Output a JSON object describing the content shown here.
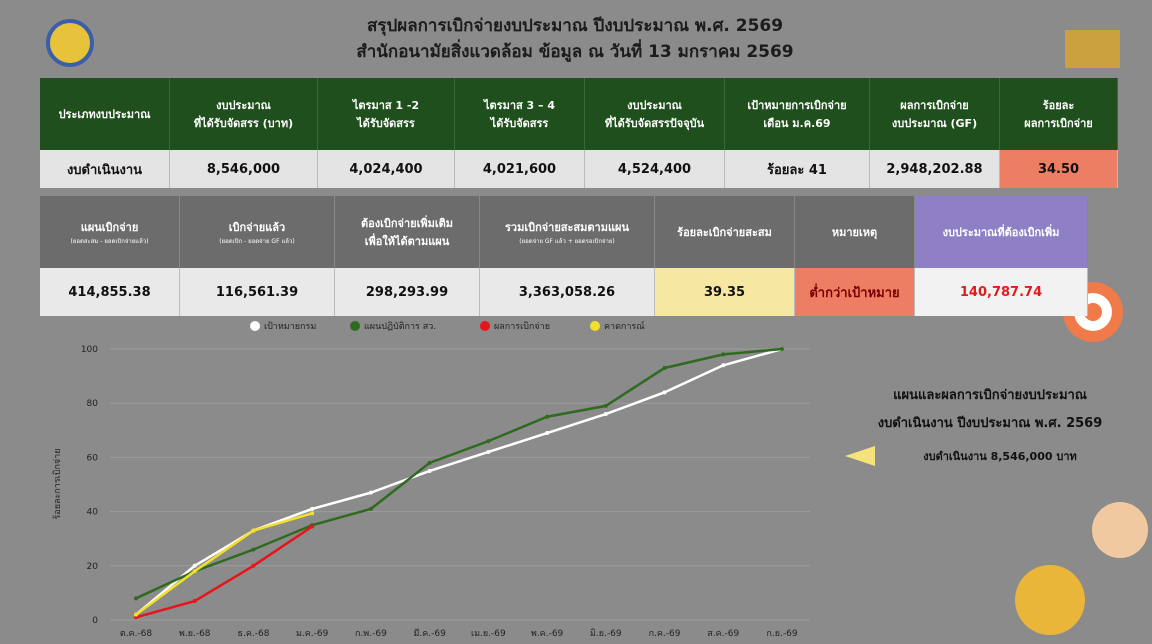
{
  "header": {
    "title": "สรุปผลการเบิกจ่ายงบประมาณ ปีงบประมาณ พ.ศ. 2569",
    "subtitle": "สำนักอนามัยสิ่งแวดล้อม ข้อมูล ณ วันที่ 13 มกราคม 2569"
  },
  "table1": {
    "headers": [
      "ประเภทงบประมาณ",
      "งบประมาณ\nที่ได้รับจัดสรร (บาท)",
      "ไตรมาส 1 -2\nได้รับจัดสรร",
      "ไตรมาส 3 – 4\nได้รับจัดสรร",
      "งบประมาณ\nที่ได้รับจัดสรรปัจจุบัน",
      "เป้าหมายการเบิกจ่าย\nเดือน ม.ค.69",
      "ผลการเบิกจ่าย\nงบประมาณ (GF)",
      "ร้อยละ\nผลการเบิกจ่าย"
    ],
    "row": [
      "งบดำเนินงาน",
      "8,546,000",
      "4,024,400",
      "4,021,600",
      "4,524,400",
      "ร้อยละ 41",
      "2,948,202.88",
      "34.50"
    ]
  },
  "table2": {
    "headers": [
      {
        "title": "แผนเบิกจ่าย",
        "note": "(ยอดสะสม - ยอดเบิกจ่ายแล้ว)"
      },
      {
        "title": "เบิกจ่ายแล้ว",
        "note": "(ยอดเบิก - ยอดจ่าย GF แล้ว)"
      },
      {
        "title": "ต้องเบิกจ่ายเพิ่มเติม\nเพื่อให้ได้ตามแผน"
      },
      {
        "title": "รวมเบิกจ่ายสะสมตามแผน",
        "note": "(ยอดจ่าย GF แล้ว + ยอดรอเบิกจ่าย)"
      },
      {
        "title": "ร้อยละเบิกจ่ายสะสม"
      },
      {
        "title": "หมายเหตุ"
      },
      {
        "title": "งบประมาณที่ต้องเบิกเพิ่ม"
      }
    ],
    "row": [
      "414,855.38",
      "116,561.39",
      "298,293.99",
      "3,363,058.26",
      "39.35",
      "ต่ำกว่าเป้าหมาย",
      "140,787.74"
    ]
  },
  "side": {
    "title": "แผนและผลการเบิกจ่ายงบประมาณ",
    "subtitle": "งบดำเนินงาน ปีงบประมาณ พ.ศ. 2569",
    "amount": "งบดำเนินงาน 8,546,000 บาท"
  },
  "chart_data": {
    "type": "line",
    "y_label": "ร้อยละการเบิกจ่าย",
    "categories": [
      "ต.ค.-68",
      "พ.ย.-68",
      "ธ.ค.-68",
      "ม.ค.-69",
      "ก.พ.-69",
      "มี.ค.-69",
      "เม.ย.-69",
      "พ.ค.-69",
      "มิ.ย.-69",
      "ก.ค.-69",
      "ส.ค.-69",
      "ก.ย.-69"
    ],
    "series": [
      {
        "name": "เป้าหมายกรม",
        "color": "#ffffff",
        "values": [
          2,
          20,
          33,
          41,
          47,
          55,
          62,
          69,
          76,
          84,
          94,
          100
        ]
      },
      {
        "name": "แผนปฏิบัติการ สว.",
        "color": "#2e6b1f",
        "values": [
          8,
          18,
          26,
          35,
          41,
          58,
          66,
          75,
          79,
          93,
          98,
          100
        ]
      },
      {
        "name": "ผลการเบิกจ่าย",
        "color": "#e8141a",
        "values": [
          1,
          7,
          20,
          34.5,
          null,
          null,
          null,
          null,
          null,
          null,
          null,
          null
        ]
      },
      {
        "name": "คาดการณ์",
        "color": "#f2e02a",
        "values": [
          2,
          18,
          33,
          39.35,
          null,
          null,
          null,
          null,
          null,
          null,
          null,
          null
        ]
      }
    ],
    "ylim": [
      0,
      100
    ],
    "yticks": [
      0,
      20,
      40,
      60,
      80,
      100
    ],
    "grid": true
  }
}
